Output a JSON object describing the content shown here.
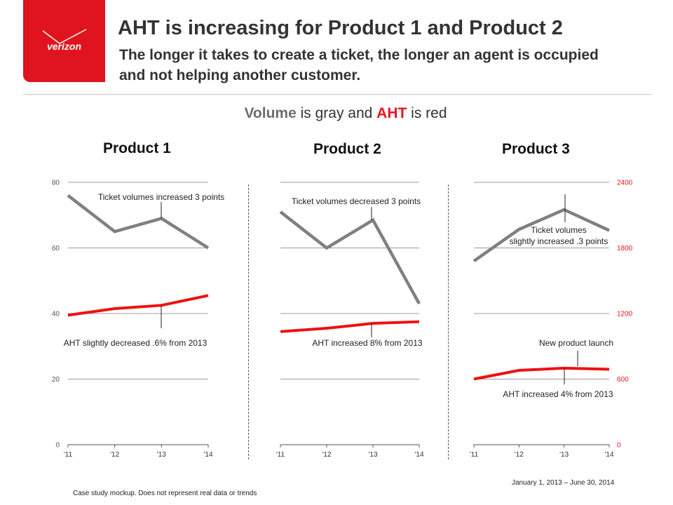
{
  "header": {
    "logo_text": "verizon",
    "title": "AHT is increasing for Product 1 and Product 2",
    "subtitle": "The longer it takes to create a ticket, the longer an agent is occupied and not helping another customer."
  },
  "legend": {
    "volume_word": "Volume",
    "mid1": " is gray and ",
    "aht_word": "AHT",
    "mid2": " is red"
  },
  "colors": {
    "volume": "#808080",
    "aht": "#ee1111",
    "brand": "#e0141e",
    "right_axis": "#e8141e"
  },
  "chart_data": [
    {
      "type": "line",
      "title": "Product 1",
      "categories": [
        "'11",
        "'12",
        "'13",
        "'14"
      ],
      "ylim": [
        0,
        80
      ],
      "yticks": [
        "0",
        "20",
        "40",
        "60",
        "80"
      ],
      "grid": true,
      "series": [
        {
          "values": [
            76,
            65,
            69,
            60
          ]
        },
        {
          "values": [
            39.5,
            41.5,
            42.5,
            45.5
          ]
        }
      ],
      "annotations": [
        {
          "lines": [
            "Ticket volumes  increased 3 points"
          ]
        },
        {
          "lines": [
            "AHT slightly decreased .6% from 2013"
          ]
        }
      ]
    },
    {
      "type": "line",
      "title": "Product  2",
      "categories": [
        "'11",
        "'12",
        "'13",
        "'14"
      ],
      "ylim": [
        0,
        80
      ],
      "grid": true,
      "series": [
        {
          "values": [
            71,
            60,
            68.5,
            43
          ]
        },
        {
          "values": [
            34.5,
            35.5,
            37,
            37.5
          ]
        }
      ],
      "annotations": [
        {
          "lines": [
            "Ticket volumes  decreased 3 points"
          ]
        },
        {
          "lines": [
            "AHT increased 8% from 2013"
          ]
        }
      ]
    },
    {
      "type": "line",
      "title": "Product  3",
      "categories": [
        "'11",
        "'12",
        "'13",
        "'14"
      ],
      "ylim": [
        0,
        2400
      ],
      "yticks": [
        "0",
        "600",
        "1200",
        "1800",
        "2400"
      ],
      "yaxis_side": "right",
      "grid": true,
      "series": [
        {
          "values": [
            1680,
            1970,
            2150,
            1960
          ]
        },
        {
          "values": [
            600,
            680,
            700,
            690
          ]
        }
      ],
      "annotations": [
        {
          "lines": [
            "Ticket volumes",
            "slightly increased .3 points"
          ]
        },
        {
          "lines": [
            "New product launch"
          ]
        },
        {
          "lines": [
            "AHT increased 4% from 2013"
          ]
        }
      ]
    }
  ],
  "footer": {
    "disclaimer": "Case study mockup. Does not represent real data or trends",
    "date_range": "January 1, 2013 – June 30, 2014"
  }
}
